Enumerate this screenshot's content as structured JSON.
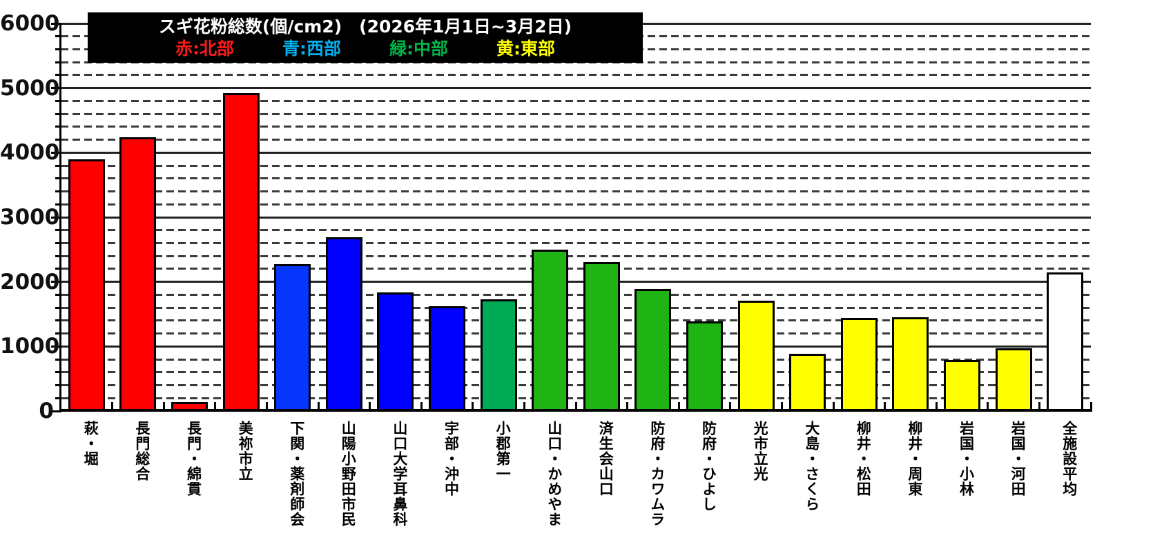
{
  "title": {
    "line1": "スギ花粉総数(個/cm2)　(2026年1月1日~3月2日)"
  },
  "legend": {
    "items": [
      {
        "label": "赤:北部",
        "color": "#ff1a1a"
      },
      {
        "label": "青:西部",
        "color": "#00b0f0"
      },
      {
        "label": "緑:中部",
        "color": "#00b449"
      },
      {
        "label": "黄:東部",
        "color": "#ffff00"
      }
    ]
  },
  "chart_data": {
    "type": "bar",
    "title": "スギ花粉総数(個/cm2)　(2026年1月1日~3月2日)",
    "xlabel": "",
    "ylabel": "",
    "ylim": [
      0,
      6000
    ],
    "y_major_step": 1000,
    "y_minor_step": 200,
    "y_tick_labels": [
      "0",
      "1000",
      "2000",
      "3000",
      "4000",
      "5000",
      "6000"
    ],
    "grid": {
      "major": "solid",
      "minor": "dashed"
    },
    "legend_position": "top-inside-black-box",
    "categories": [
      "萩・堀",
      "長門総合",
      "長門・綿貫",
      "美祢市立",
      "下関・薬剤師会",
      "山陽小野田市民",
      "山口大学耳鼻科",
      "宇部・沖中",
      "小郡第一",
      "山口・かめやま",
      "済生会山口",
      "防府・カワムラ",
      "防府・ひよし",
      "光市立光",
      "大島・さくら",
      "柳井・松田",
      "柳井・周東",
      "岩国・小林",
      "岩国・河田",
      "全施設平均"
    ],
    "values": [
      3900,
      4240,
      140,
      4920,
      2270,
      2690,
      1840,
      1620,
      1730,
      2500,
      2310,
      1890,
      1390,
      1710,
      890,
      1440,
      1450,
      790,
      970,
      2150
    ],
    "bar_colors": [
      "#ff0000",
      "#ff0000",
      "#ff0000",
      "#ff0000",
      "#0636fb",
      "#0000ff",
      "#0000ff",
      "#0000ff",
      "#00ab57",
      "#1fb414",
      "#1fb414",
      "#1fb414",
      "#1fb414",
      "#ffff00",
      "#ffff00",
      "#ffff00",
      "#ffff00",
      "#ffff00",
      "#ffff00",
      "#ffffff"
    ],
    "regions": [
      {
        "name": "北部",
        "color": "#ff0000",
        "category_indexes": [
          0,
          1,
          2,
          3
        ]
      },
      {
        "name": "西部",
        "color": "#0000ff",
        "category_indexes": [
          4,
          5,
          6,
          7
        ]
      },
      {
        "name": "中部",
        "color": "#1fb414",
        "category_indexes": [
          8,
          9,
          10,
          11,
          12
        ]
      },
      {
        "name": "東部",
        "color": "#ffff00",
        "category_indexes": [
          13,
          14,
          15,
          16,
          17,
          18
        ]
      },
      {
        "name": "全施設平均",
        "color": "#ffffff",
        "category_indexes": [
          19
        ]
      }
    ]
  }
}
